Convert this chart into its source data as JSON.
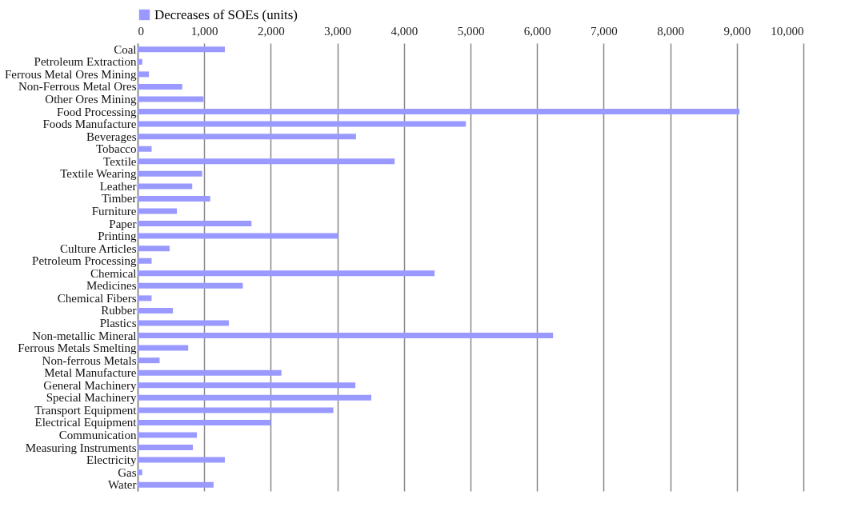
{
  "chart_data": {
    "type": "bar",
    "orientation": "horizontal",
    "legend": "top",
    "grid": "x",
    "categories": [
      "Coal",
      "Petroleum Extraction",
      "Ferrous Metal Ores Mining",
      "Non-Ferrous Metal Ores",
      "Other Ores Mining",
      "Food Processing",
      "Foods Manufacture",
      "Beverages",
      "Tobacco",
      "Textile",
      "Textile Wearing",
      "Leather",
      "Timber",
      "Furniture",
      "Paper",
      "Printing",
      "Culture Articles",
      "Petroleum Processing",
      "Chemical",
      "Medicines",
      "Chemical Fibers",
      "Rubber",
      "Plastics",
      "Non-metallic Mineral",
      "Ferrous Metals Smelting",
      "Non-ferrous Metals",
      "Metal Manufacture",
      "General Machinery",
      "Special Machinery",
      "Transport Equipment",
      "Electrical Equipment",
      "Communication",
      "Measuring Instruments",
      "Electricity",
      "Gas",
      "Water"
    ],
    "series": [
      {
        "name": "Decreases of SOEs (units)",
        "color": "#9999ff",
        "values": [
          1310,
          70,
          170,
          670,
          990,
          9040,
          4930,
          3280,
          210,
          3860,
          970,
          820,
          1090,
          590,
          1710,
          3010,
          480,
          210,
          4460,
          1580,
          210,
          530,
          1370,
          6240,
          760,
          330,
          2160,
          3270,
          3510,
          2940,
          2000,
          890,
          830,
          1310,
          70,
          1140
        ]
      }
    ],
    "xlim": [
      0,
      10000
    ],
    "xticks": [
      {
        "value": 0,
        "label": "0"
      },
      {
        "value": 1000,
        "label": "1,000"
      },
      {
        "value": 2000,
        "label": "2,000"
      },
      {
        "value": 3000,
        "label": "3,000"
      },
      {
        "value": 4000,
        "label": "4,000"
      },
      {
        "value": 5000,
        "label": "5,000"
      },
      {
        "value": 6000,
        "label": "6,000"
      },
      {
        "value": 7000,
        "label": "7,000"
      },
      {
        "value": 8000,
        "label": "8,000"
      },
      {
        "value": 9000,
        "label": "9,000"
      },
      {
        "value": 10000,
        "label": "10,000"
      }
    ]
  }
}
